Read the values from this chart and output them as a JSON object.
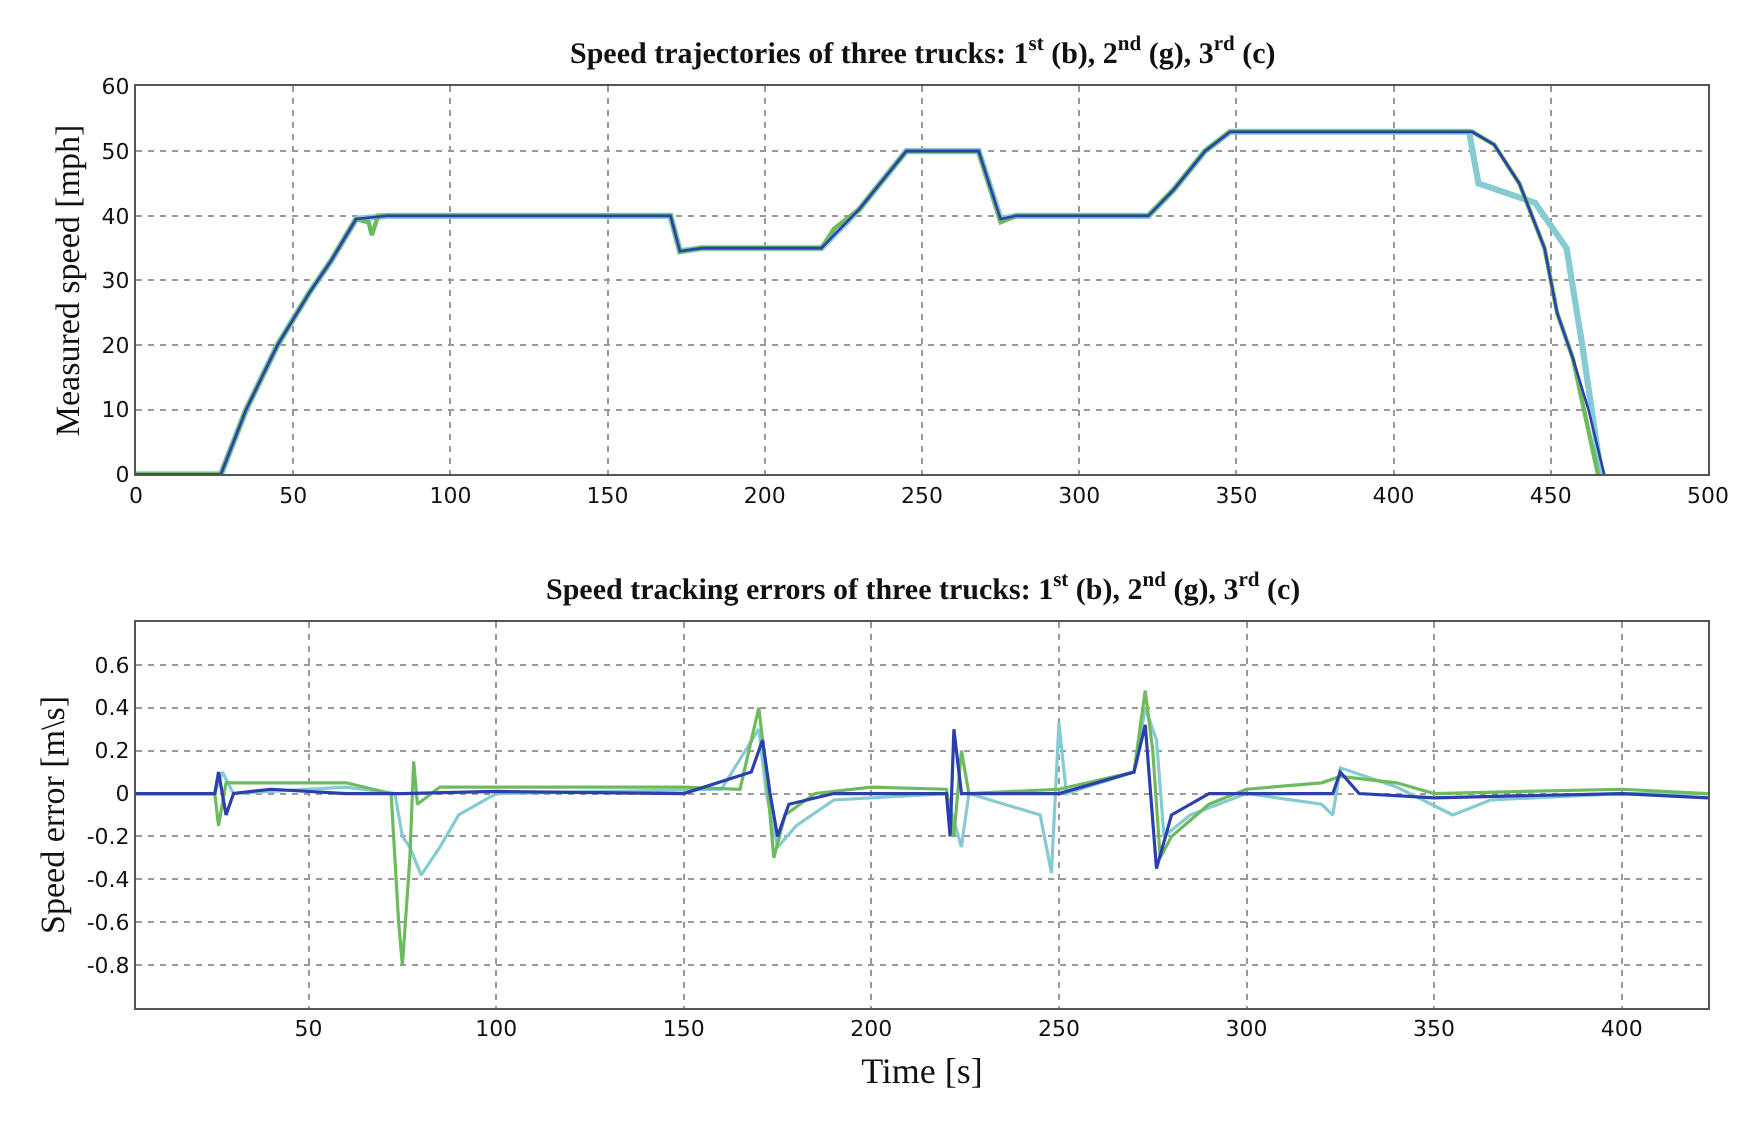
{
  "chart_data": [
    {
      "type": "line",
      "title": "Speed trajectories of three trucks: 1$^{st}$ (b), 2$^{nd}$ (g), 3$^{rd}$ (c)",
      "ylabel": "Measured speed [mph]",
      "xlim": [
        0,
        500
      ],
      "xticks": [
        0,
        50,
        100,
        150,
        200,
        250,
        300,
        350,
        400,
        450,
        500
      ],
      "ylim": [
        0,
        60
      ],
      "yticks": [
        0,
        10,
        20,
        30,
        40,
        50,
        60
      ],
      "grid": true,
      "line_style": "solid",
      "marker": "none",
      "series": [
        {
          "color": "#85cbd1",
          "x": [
            0,
            27,
            35,
            45,
            55,
            62,
            70,
            80,
            170,
            173,
            180,
            218,
            222,
            230,
            240,
            245,
            268,
            275,
            280,
            322,
            330,
            340,
            348,
            424,
            427,
            445,
            455,
            460,
            466
          ],
          "values": [
            0,
            0,
            10,
            20,
            28,
            33,
            39.5,
            40,
            40,
            34.5,
            35,
            35,
            37,
            41,
            47,
            50,
            50,
            39.5,
            40,
            40,
            44,
            50,
            53,
            53,
            45,
            42,
            35,
            20,
            0
          ]
        },
        {
          "color": "#6dbb5e",
          "x": [
            0,
            27,
            35,
            45,
            55,
            62,
            70,
            74,
            75,
            77,
            80,
            170,
            173,
            180,
            218,
            222,
            230,
            240,
            245,
            268,
            275,
            280,
            322,
            330,
            340,
            348,
            425,
            432,
            440,
            448,
            452,
            457,
            465
          ],
          "values": [
            0,
            0,
            10,
            20,
            28,
            33,
            39.5,
            39,
            37,
            40,
            40,
            40,
            34.5,
            35,
            35,
            38,
            41,
            47,
            50,
            50,
            39,
            40,
            40,
            44,
            50,
            53,
            53,
            51,
            45,
            35,
            25,
            18,
            0
          ]
        },
        {
          "color": "#2b3fae",
          "x": [
            0,
            27,
            35,
            45,
            55,
            62,
            70,
            80,
            170,
            173,
            180,
            218,
            222,
            230,
            240,
            245,
            268,
            275,
            280,
            322,
            330,
            340,
            348,
            425,
            432,
            440,
            448,
            452,
            457,
            462,
            467
          ],
          "values": [
            0,
            0,
            10,
            20,
            28,
            33,
            39.5,
            40,
            40,
            34.5,
            35,
            35,
            37,
            41,
            47,
            50,
            50,
            39.5,
            40,
            40,
            44,
            50,
            53,
            53,
            51,
            45,
            35,
            25,
            18,
            10,
            0
          ]
        }
      ]
    },
    {
      "type": "line",
      "title": "Speed tracking errors of three trucks: 1$^{st}$ (b), 2$^{nd}$ (g), 3$^{rd}$ (c)",
      "xlabel": "Time [s]",
      "ylabel": "Speed error [m\\s]",
      "xlim": [
        4,
        423
      ],
      "xticks": [
        50,
        100,
        150,
        200,
        250,
        300,
        350,
        400
      ],
      "ylim": [
        -1,
        0.8
      ],
      "yticks": [
        -0.8,
        -0.6,
        -0.4,
        -0.2,
        0,
        0.2,
        0.4,
        0.6
      ],
      "grid": true,
      "line_style": "solid",
      "marker": "none",
      "series": [
        {
          "color": "#85cbd1",
          "x": [
            4,
            25,
            27,
            30,
            60,
            73,
            75,
            77,
            80,
            85,
            90,
            100,
            160,
            170,
            172,
            175,
            180,
            190,
            220,
            224,
            226,
            245,
            248,
            250,
            252,
            270,
            273,
            276,
            278,
            285,
            300,
            320,
            323,
            325,
            340,
            355,
            365,
            400,
            423
          ],
          "values": [
            0,
            0,
            0.1,
            0,
            0.03,
            0,
            -0.2,
            -0.25,
            -0.38,
            -0.25,
            -0.1,
            0,
            0.02,
            0.3,
            0,
            -0.25,
            -0.15,
            -0.03,
            0,
            -0.25,
            0,
            -0.1,
            -0.37,
            0.33,
            0,
            0.1,
            0.4,
            0.25,
            -0.2,
            -0.1,
            0,
            -0.05,
            -0.1,
            0.12,
            0.03,
            -0.1,
            -0.03,
            0,
            0
          ]
        },
        {
          "color": "#6dbb5e",
          "x": [
            4,
            25,
            26,
            28,
            40,
            60,
            72,
            74,
            75,
            77,
            78,
            79,
            85,
            100,
            150,
            165,
            170,
            172,
            174,
            177,
            185,
            200,
            220,
            222,
            224,
            226,
            250,
            270,
            273,
            275,
            277,
            280,
            290,
            300,
            320,
            325,
            340,
            350,
            400,
            423
          ],
          "values": [
            0,
            0,
            -0.15,
            0.05,
            0.05,
            0.05,
            0,
            -0.6,
            -0.8,
            -0.3,
            0.15,
            -0.05,
            0.03,
            0.03,
            0.03,
            0.02,
            0.4,
            0.1,
            -0.3,
            -0.1,
            0,
            0.03,
            0.02,
            -0.2,
            0.2,
            0,
            0.02,
            0.1,
            0.48,
            0.2,
            -0.3,
            -0.2,
            -0.05,
            0.02,
            0.05,
            0.08,
            0.05,
            0,
            0.02,
            0
          ]
        },
        {
          "color": "#2b3fae",
          "x": [
            4,
            25,
            26,
            28,
            30,
            40,
            60,
            75,
            100,
            150,
            168,
            171,
            173,
            175,
            178,
            190,
            220,
            221,
            222,
            224,
            250,
            270,
            273,
            276,
            280,
            290,
            323,
            325,
            330,
            350,
            400,
            423
          ],
          "values": [
            0,
            0,
            0.1,
            -0.1,
            0,
            0.02,
            0,
            0,
            0.01,
            0,
            0.1,
            0.25,
            0,
            -0.2,
            -0.05,
            0,
            0,
            -0.2,
            0.3,
            0,
            0,
            0.1,
            0.32,
            -0.35,
            -0.1,
            0,
            0,
            0.1,
            0,
            -0.02,
            0,
            -0.02
          ]
        }
      ]
    }
  ]
}
